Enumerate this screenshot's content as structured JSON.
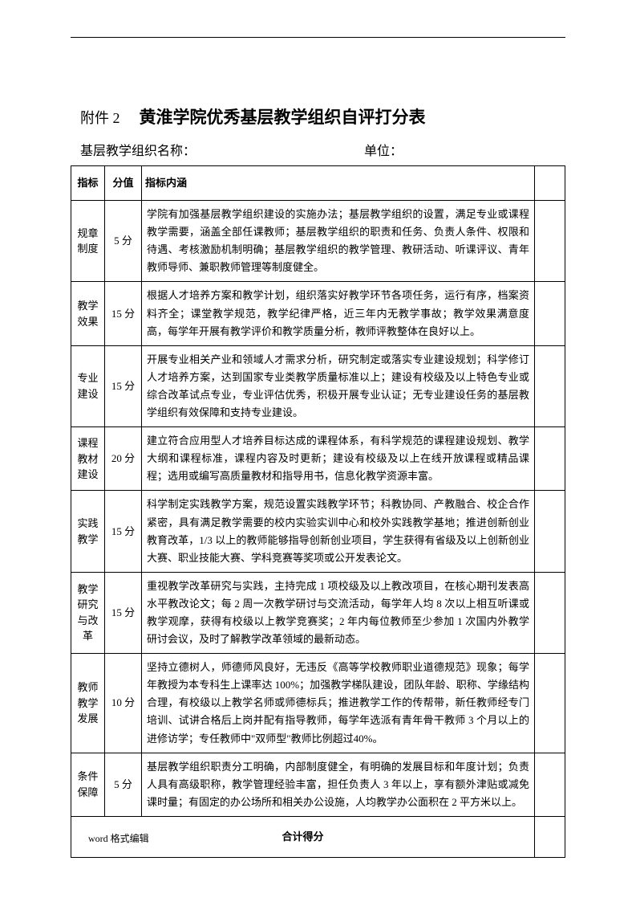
{
  "header": {
    "attachment_label": "附件 2",
    "main_title": "黄淮学院优秀基层教学组织自评打分表",
    "org_name_label": "基层教学组织名称：",
    "unit_label": "单位："
  },
  "table": {
    "columns": {
      "indicator": "指标",
      "score": "分值",
      "content": "指标内涵",
      "blank": ""
    },
    "rows": [
      {
        "indicator": "规章制度",
        "score": "5 分",
        "content": "学院有加强基层教学组织建设的实施办法；基层教学组织的设置，满足专业或课程教学需要，涵盖全部任课教师；基层教学组织的职责和任务、负责人条件、权限和待遇、考核激励机制明确；基层教学组织的教学管理、教研活动、听课评议、青年教师导师、兼职教师管理等制度健全。"
      },
      {
        "indicator": "教学效果",
        "score": "15 分",
        "content": "根据人才培养方案和教学计划，组织落实好教学环节各项任务，运行有序，档案资料齐全；课堂教学规范，教学纪律严格，近三年内无教学事故；教学效果满意度高，每学年开展有教学评价和教学质量分析，教师评教整体在良好以上。"
      },
      {
        "indicator": "专业建设",
        "score": "15 分",
        "content": "开展专业相关产业和领域人才需求分析，研究制定或落实专业建设规划；科学修订人才培养方案，达到国家专业类教学质量标准以上；建设有校级及以上特色专业或综合改革试点专业，专业评估优秀，积极开展专业认证；无专业建设任务的基层教学组织有效保障和支持专业建设。"
      },
      {
        "indicator": "课程教材建设",
        "score": "20 分",
        "content": "建立符合应用型人才培养目标达成的课程体系，有科学规范的课程建设规划、教学大纲和课程标准，课程内容及时更新；建设有校级及以上在线开放课程或精品课程；选用或编写高质量教材和指导用书，信息化教学资源丰富。"
      },
      {
        "indicator": "实践教学",
        "score": "15 分",
        "content": "科学制定实践教学方案，规范设置实践教学环节；科教协同、产教融合、校企合作紧密，具有满足教学需要的校内实验实训中心和校外实践教学基地；推进创新创业教育改革，1/3 以上的教师能够指导创新创业项目，学生获得有省级及以上创新创业大赛、职业技能大赛、学科竞赛等奖项或公开发表论文。"
      },
      {
        "indicator": "教学研究与改革",
        "score": "15 分",
        "content": "重视教学改革研究与实践，主持完成 1 项校级及以上教改项目，在核心期刊发表高水平教改论文；每 2 周一次教学研讨与交流活动，每学年人均 8 次以上相互听课或教学观摩，获得有校级以上教学竞赛奖；2 年内每位教师至少参加 1 次国内外教学研讨会议，及时了解教学改革领域的最新动态。"
      },
      {
        "indicator": "教师教学发展",
        "score": "10 分",
        "content": "坚持立德树人，师德师风良好，无违反《高等学校教师职业道德规范》现象；每学年教授为本专科生上课率达 100%；加强教学梯队建设，团队年龄、职称、学缘结构合理，有校级以上教学名师或师德标兵；推进教学工作的传帮带，新任教师经专门培训、试讲合格后上岗并配有指导教师，每学年选派有青年骨干教师 3 个月以上的进修访学；专任教师中\"双师型\"教师比例超过40%。"
      },
      {
        "indicator": "条件保障",
        "score": "5 分",
        "content": "基层教学组织职责分工明确，内部制度健全，有明确的发展目标和年度计划；负责人具有高级职称，教学管理经验丰富，担任负责人 3 年以上，享有额外津贴或减免课时量；有固定的办公场所和相关办公设施，人均教学办公面积在 2 平方米以上。"
      }
    ],
    "total_label": "合计得分"
  },
  "footer": {
    "text": "word 格式编辑"
  }
}
